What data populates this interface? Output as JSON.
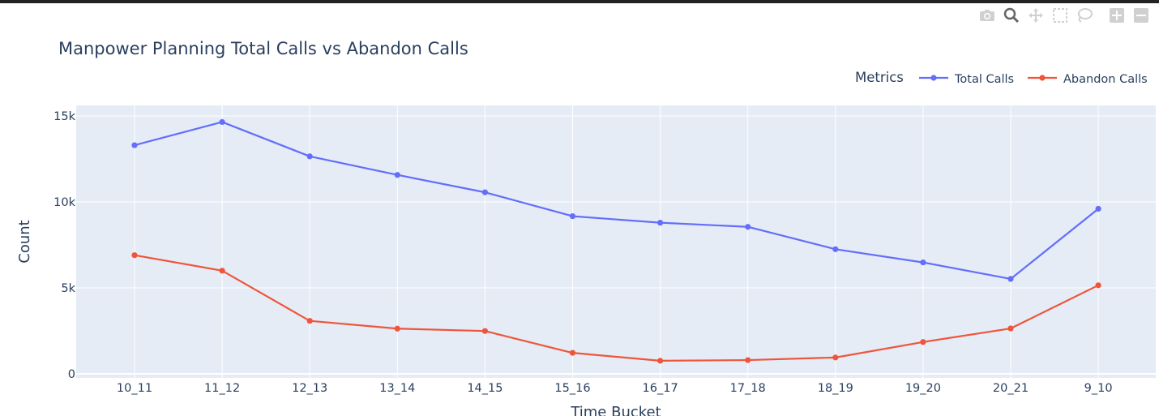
{
  "modebar": {
    "buttons": [
      "camera-icon",
      "zoom-icon",
      "pan-icon",
      "box-select-icon",
      "lasso-icon",
      "zoom-in-icon",
      "zoom-out-icon"
    ]
  },
  "colors": {
    "plot_bg": "#e5ecf6",
    "grid": "#ffffff",
    "text": "#2a3f5f",
    "total_calls": "#636efa",
    "abandon_calls": "#ef553b"
  },
  "chart_data": {
    "type": "line",
    "title": "Manpower Planning Total Calls vs Abandon Calls",
    "xlabel": "Time Bucket",
    "ylabel": "Count",
    "legend_title": "Metrics",
    "legend_position": "top-right",
    "grid": true,
    "ylim": [
      0,
      15500
    ],
    "yticks": [
      0,
      5000,
      10000,
      15000
    ],
    "ytick_labels": [
      "0",
      "5k",
      "10k",
      "15k"
    ],
    "categories": [
      "10_11",
      "11_12",
      "12_13",
      "13_14",
      "14_15",
      "15_16",
      "16_17",
      "17_18",
      "18_19",
      "19_20",
      "20_21",
      "9_10"
    ],
    "series": [
      {
        "name": "Total Calls",
        "values": [
          13300,
          14650,
          12650,
          11570,
          10560,
          9170,
          8790,
          8550,
          7250,
          6480,
          5520,
          9600
        ]
      },
      {
        "name": "Abandon Calls",
        "values": [
          6900,
          6000,
          3080,
          2630,
          2490,
          1220,
          760,
          800,
          950,
          1850,
          2640,
          5150
        ]
      }
    ]
  }
}
